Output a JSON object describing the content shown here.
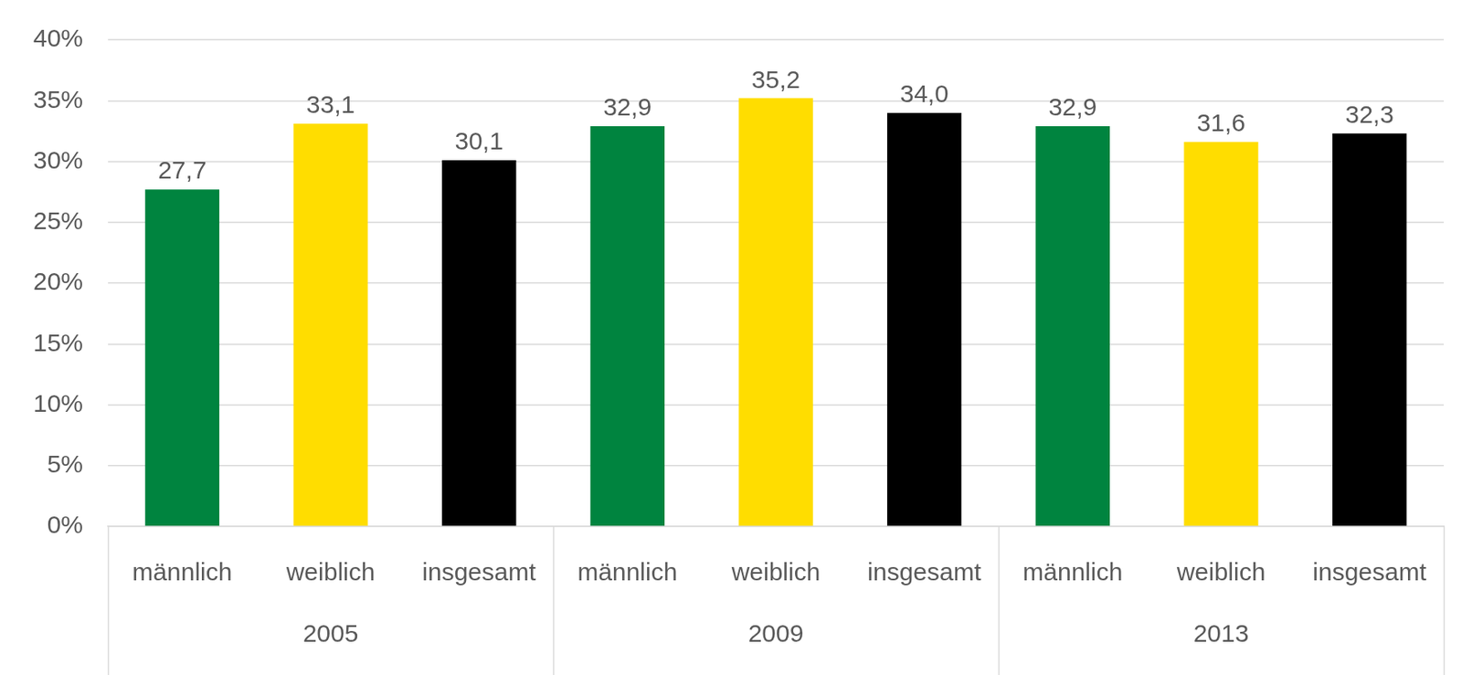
{
  "chart_data": {
    "type": "bar",
    "categories": [
      "2005",
      "2009",
      "2013"
    ],
    "series": [
      {
        "name": "männlich",
        "color": "#00843f",
        "values": [
          27.7,
          32.9,
          32.9
        ],
        "value_labels": [
          "27,7",
          "32,9",
          "32,9"
        ]
      },
      {
        "name": "weiblich",
        "color": "#ffdd00",
        "values": [
          33.1,
          35.2,
          31.6
        ],
        "value_labels": [
          "33,1",
          "35,2",
          "31,6"
        ]
      },
      {
        "name": "insgesamt",
        "color": "#000000",
        "values": [
          30.1,
          34.0,
          32.3
        ],
        "value_labels": [
          "30,1",
          "34,0",
          "32,3"
        ]
      }
    ],
    "ylim": [
      0,
      40
    ],
    "yticks": [
      {
        "value": 0,
        "label": "0%"
      },
      {
        "value": 5,
        "label": "5%"
      },
      {
        "value": 10,
        "label": "10%"
      },
      {
        "value": 15,
        "label": "15%"
      },
      {
        "value": 20,
        "label": "20%"
      },
      {
        "value": 25,
        "label": "25%"
      },
      {
        "value": 30,
        "label": "30%"
      },
      {
        "value": 35,
        "label": "35%"
      },
      {
        "value": 40,
        "label": "40%"
      }
    ],
    "grid": true,
    "data_labels": true
  }
}
